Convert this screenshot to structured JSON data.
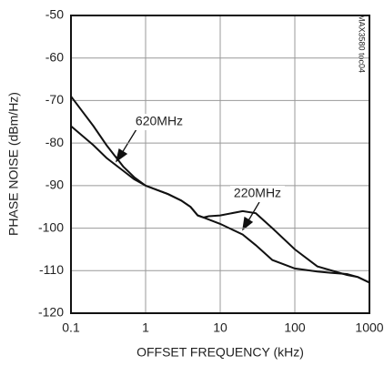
{
  "chart_data": {
    "type": "line",
    "side_note": "MAX3580 toc04",
    "xlabel": "OFFSET FREQUENCY (kHz)",
    "ylabel": "PHASE NOISE (dBm/Hz)",
    "xscale": "log",
    "xlim": [
      0.1,
      1000
    ],
    "xticks": [
      0.1,
      1,
      10,
      100,
      1000
    ],
    "ylim": [
      -120,
      -50
    ],
    "yticks": [
      -120,
      -110,
      -100,
      -90,
      -80,
      -70,
      -60,
      -50
    ],
    "grid": true,
    "series": [
      {
        "name": "620MHz",
        "color": "#111111",
        "x": [
          0.1,
          0.2,
          0.3,
          0.5,
          0.7,
          1,
          2,
          3,
          4,
          5,
          6,
          7,
          10,
          20,
          30,
          50,
          100,
          200,
          500,
          700,
          1000
        ],
        "values": [
          -69,
          -76,
          -80.5,
          -85.5,
          -88,
          -90,
          -92,
          -93.5,
          -95,
          -97,
          -97.5,
          -97.2,
          -97,
          -96,
          -96.5,
          -100,
          -105,
          -109,
          -111,
          -111.5,
          -112.8
        ]
      },
      {
        "name": "220MHz",
        "color": "#111111",
        "x": [
          0.1,
          0.2,
          0.3,
          0.5,
          0.7,
          1,
          2,
          3,
          4,
          5,
          6,
          10,
          20,
          30,
          50,
          100,
          200,
          300,
          500,
          700,
          1000
        ],
        "values": [
          -76,
          -80.5,
          -83.5,
          -86.5,
          -88.5,
          -90,
          -92,
          -93.5,
          -95,
          -97,
          -97.5,
          -99,
          -101.5,
          -104,
          -107.5,
          -109.5,
          -110.2,
          -110.5,
          -110.8,
          -111.5,
          -112.8
        ]
      }
    ]
  }
}
